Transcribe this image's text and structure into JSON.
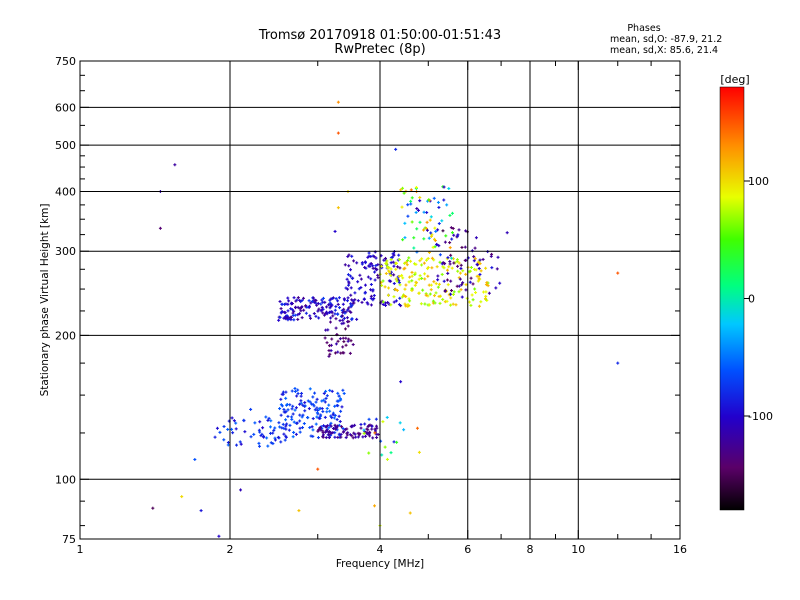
{
  "chart_data": {
    "type": "scatter",
    "title": "Tromsø 20170918 01:50:00-01:51:43",
    "subtitle": "RwPretec (8p)",
    "xlabel": "Frequency [MHz]",
    "ylabel": "Stationary phase Virtual Height [km]",
    "x_scale": "log",
    "y_scale": "log",
    "xlim": [
      1,
      16
    ],
    "ylim": [
      75,
      750
    ],
    "x_ticks": [
      1,
      2,
      4,
      6,
      8,
      10,
      16
    ],
    "x_tick_labels": [
      "1",
      "2",
      "4",
      "6",
      "8",
      "10",
      "16"
    ],
    "x_gridlines": [
      2,
      4,
      6,
      8,
      10
    ],
    "x_minor_ticks": [
      3,
      5,
      7,
      9,
      12,
      14
    ],
    "y_ticks": [
      75,
      100,
      200,
      300,
      400,
      500,
      600,
      750
    ],
    "y_tick_labels": [
      "75",
      "100",
      "200",
      "300",
      "400",
      "500",
      "600",
      "750"
    ],
    "y_gridlines": [
      100,
      200,
      300,
      400,
      500,
      600
    ],
    "y_minor_ticks": [
      80,
      90,
      125,
      150,
      175,
      225,
      250,
      275,
      325,
      350,
      375,
      425,
      450,
      475,
      550,
      650,
      700
    ],
    "grid": true,
    "stats": {
      "header": "Phases",
      "lines": [
        "mean, sd,O: -87.9, 21.2",
        "mean, sd,X:  85.6, 21.4"
      ]
    },
    "colorbar": {
      "label": "[deg]",
      "range": [
        -180,
        180
      ],
      "ticks": [
        100,
        0,
        -100
      ],
      "tick_labels": [
        "100",
        "0",
        "-100"
      ],
      "placement": "right"
    },
    "point_color_scale": "phase in degrees, rainbow from -180 (black) through purple, blue, cyan, green, yellow, orange to 180 (red)",
    "clusters": [
      {
        "name": "",
        "x_range": [
          2.5,
          3.6
        ],
        "y_range": [
          215,
          240
        ],
        "phase_range": [
          -130,
          -70
        ],
        "n": 160
      },
      {
        "name": "",
        "x_range": [
          3.1,
          3.55
        ],
        "y_range": [
          180,
          215
        ],
        "phase_range": [
          -150,
          -110
        ],
        "n": 40
      },
      {
        "name": "",
        "x_range": [
          3.4,
          4.4
        ],
        "y_range": [
          230,
          300
        ],
        "phase_range": [
          -130,
          -80
        ],
        "n": 130
      },
      {
        "name": "",
        "x_range": [
          4.0,
          6.6
        ],
        "y_range": [
          230,
          290
        ],
        "phase_range": [
          60,
          120
        ],
        "n": 190
      },
      {
        "name": "",
        "x_range": [
          4.4,
          5.6
        ],
        "y_range": [
          290,
          410
        ],
        "phase_range": [
          -120,
          140
        ],
        "n": 75
      },
      {
        "name": "",
        "x_range": [
          5.2,
          7.0
        ],
        "y_range": [
          240,
          340
        ],
        "phase_range": [
          -160,
          -90
        ],
        "n": 70
      },
      {
        "name": "",
        "x_range": [
          1.85,
          2.6
        ],
        "y_range": [
          117,
          135
        ],
        "phase_range": [
          -100,
          -50
        ],
        "n": 55
      },
      {
        "name": "",
        "x_range": [
          2.5,
          3.4
        ],
        "y_range": [
          122,
          155
        ],
        "phase_range": [
          -95,
          -50
        ],
        "n": 160
      },
      {
        "name": "",
        "x_range": [
          3.0,
          4.0
        ],
        "y_range": [
          122,
          130
        ],
        "phase_range": [
          -140,
          -110
        ],
        "n": 90
      },
      {
        "name": "",
        "x_range": [
          3.6,
          4.8
        ],
        "y_range": [
          110,
          135
        ],
        "phase_range": [
          -110,
          150
        ],
        "n": 22
      }
    ],
    "isolated_points": [
      {
        "x": 1.45,
        "y": 400,
        "phase": -110
      },
      {
        "x": 1.55,
        "y": 455,
        "phase": -120
      },
      {
        "x": 1.45,
        "y": 335,
        "phase": -140
      },
      {
        "x": 1.4,
        "y": 87,
        "phase": -150
      },
      {
        "x": 1.6,
        "y": 92,
        "phase": 100
      },
      {
        "x": 1.75,
        "y": 86,
        "phase": -90
      },
      {
        "x": 1.9,
        "y": 76,
        "phase": -100
      },
      {
        "x": 2.1,
        "y": 95,
        "phase": -110
      },
      {
        "x": 1.7,
        "y": 110,
        "phase": -60
      },
      {
        "x": 3.3,
        "y": 615,
        "phase": 130
      },
      {
        "x": 3.3,
        "y": 530,
        "phase": 150
      },
      {
        "x": 4.3,
        "y": 490,
        "phase": -80
      },
      {
        "x": 3.25,
        "y": 330,
        "phase": -100
      },
      {
        "x": 3.45,
        "y": 400,
        "phase": 100
      },
      {
        "x": 3.3,
        "y": 370,
        "phase": 110
      },
      {
        "x": 4.0,
        "y": 80,
        "phase": 80
      },
      {
        "x": 4.6,
        "y": 85,
        "phase": 110
      },
      {
        "x": 3.9,
        "y": 88,
        "phase": 120
      },
      {
        "x": 3.0,
        "y": 105,
        "phase": 150
      },
      {
        "x": 2.75,
        "y": 86,
        "phase": 110
      },
      {
        "x": 4.4,
        "y": 160,
        "phase": -100
      },
      {
        "x": 12.0,
        "y": 270,
        "phase": 150
      },
      {
        "x": 12.0,
        "y": 175,
        "phase": -80
      },
      {
        "x": 7.2,
        "y": 328,
        "phase": -110
      },
      {
        "x": 2.2,
        "y": 140,
        "phase": -70
      }
    ],
    "dense_region_x_range": [
      1.85,
      7.2
    ],
    "dense_region_y_range": [
      105,
      420
    ]
  }
}
